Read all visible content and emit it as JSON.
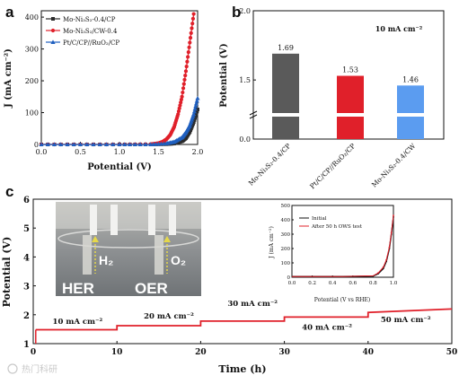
{
  "figure": {
    "panel_letters": [
      "a",
      "b",
      "c"
    ],
    "watermark": "热门科研"
  },
  "chart_data": [
    {
      "id": "a",
      "type": "line",
      "xlabel": "Potential (V)",
      "ylabel": "J (mA cm⁻²)",
      "xlim": [
        0,
        2.0
      ],
      "ylim": [
        0,
        420
      ],
      "xticks": [
        "0.0",
        "0.5",
        "1.0",
        "1.5",
        "2.0"
      ],
      "yticks": [
        "0",
        "100",
        "200",
        "300",
        "400"
      ],
      "legend_position": "top-left",
      "series": [
        {
          "name": "Mo-Ni₃S₂-0.4/CP",
          "color": "#2b2b2b",
          "marker": "square",
          "x": [
            0,
            0.5,
            1.0,
            1.4,
            1.6,
            1.7,
            1.8,
            1.85,
            1.9,
            1.95,
            2.0
          ],
          "y": [
            0,
            0,
            0,
            0,
            1,
            3,
            10,
            20,
            40,
            70,
            110
          ]
        },
        {
          "name": "Mo-Ni₃S₂/CW-0.4",
          "color": "#e0202a",
          "marker": "circle",
          "x": [
            0,
            0.5,
            1.0,
            1.4,
            1.5,
            1.55,
            1.6,
            1.65,
            1.7,
            1.75,
            1.8,
            1.85,
            1.9,
            1.95
          ],
          "y": [
            0,
            0,
            0,
            1,
            4,
            8,
            16,
            30,
            55,
            95,
            150,
            230,
            320,
            410
          ]
        },
        {
          "name": "Pt/C/CP//RuO₂/CP",
          "color": "#1f5fbf",
          "marker": "triangle",
          "x": [
            0,
            0.5,
            1.0,
            1.4,
            1.6,
            1.7,
            1.8,
            1.85,
            1.9,
            1.95,
            2.0
          ],
          "y": [
            0,
            0,
            0,
            0,
            3,
            8,
            22,
            38,
            60,
            95,
            145
          ]
        }
      ]
    },
    {
      "id": "b",
      "type": "bar",
      "ylabel": "Potential (V)",
      "annotation": "10 mA cm⁻²",
      "yticks": [
        "0.0",
        "1.5",
        "2.0"
      ],
      "axis_break": true,
      "categories": [
        "Mo-Ni₃S₂-0.4/CP",
        "Pt/C/CP//RuO₂/CP",
        "Mo-Ni₃S₂-0.4/CW"
      ],
      "values": [
        1.69,
        1.53,
        1.46
      ],
      "labels": [
        "1.69",
        "1.53",
        "1.46"
      ],
      "colors": [
        "#5a5a5a",
        "#e0202a",
        "#5b9cf0"
      ]
    },
    {
      "id": "c",
      "type": "line",
      "xlabel": "Time (h)",
      "ylabel": "Potential (V)",
      "xlim": [
        0,
        50
      ],
      "ylim": [
        1,
        6
      ],
      "xticks": [
        "0",
        "10",
        "20",
        "30",
        "40",
        "50"
      ],
      "yticks": [
        "1",
        "2",
        "3",
        "4",
        "5",
        "6"
      ],
      "series": [
        {
          "name": "",
          "color": "#e0202a",
          "x": [
            0.3,
            10,
            10,
            20,
            20,
            30,
            30,
            40,
            40,
            50
          ],
          "y": [
            1.48,
            1.48,
            1.62,
            1.62,
            1.78,
            1.78,
            1.92,
            1.92,
            2.08,
            2.2
          ]
        }
      ],
      "step_labels": [
        "10 mA cm⁻²",
        "20 mA cm⁻²",
        "30 mA cm⁻²",
        "40 mA cm⁻²",
        "50 mA cm⁻²"
      ],
      "step_label_pos": [
        {
          "t": 5.3,
          "v": 1.68
        },
        {
          "t": 16.2,
          "v": 1.87
        },
        {
          "t": 26.2,
          "v": 2.3
        },
        {
          "t": 35.1,
          "v": 1.48
        },
        {
          "t": 44.5,
          "v": 1.75
        }
      ],
      "photo": {
        "labels": [
          "H₂",
          "O₂",
          "HER",
          "OER"
        ]
      },
      "inset": {
        "type": "line",
        "xlabel": "Potential (V vs RHE)",
        "ylabel": "J (mA cm⁻²)",
        "xlim": [
          0,
          1.0
        ],
        "ylim": [
          0,
          500
        ],
        "xticks": [
          "0.0",
          "0.2",
          "0.4",
          "0.6",
          "0.8",
          "1.0"
        ],
        "yticks": [
          "0",
          "100",
          "200",
          "300",
          "400",
          "500"
        ],
        "series": [
          {
            "name": "Initial",
            "color": "#111111",
            "x": [
              0,
              0.5,
              0.8,
              0.85,
              0.9,
              0.93,
              0.96,
              0.98,
              1.0
            ],
            "y": [
              5,
              5,
              8,
              25,
              60,
              110,
              200,
              300,
              420
            ]
          },
          {
            "name": "After 50 h OWS test",
            "color": "#e0202a",
            "x": [
              0,
              0.5,
              0.8,
              0.85,
              0.9,
              0.93,
              0.96,
              0.98,
              1.0
            ],
            "y": [
              5,
              5,
              10,
              30,
              70,
              120,
              210,
              310,
              430
            ]
          }
        ]
      }
    }
  ]
}
